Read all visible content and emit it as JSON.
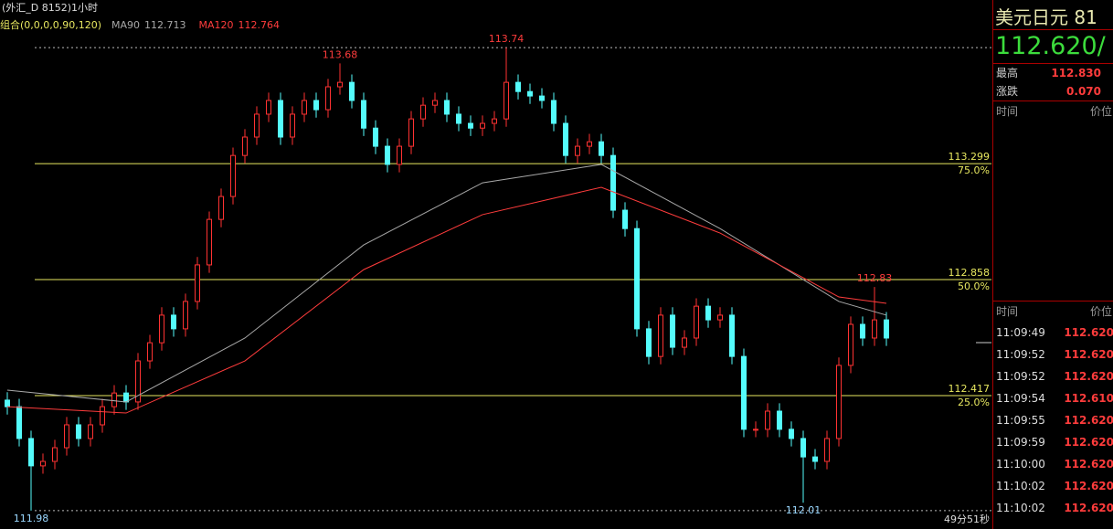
{
  "header": {
    "title": "(外汇_D 8152)1小时",
    "indicator": "组合(0,0,0,0,90,120)"
  },
  "chart_data": {
    "type": "candlestick",
    "open": [
      112.4,
      112.375,
      112.254,
      112.15,
      112.167,
      112.219,
      112.306,
      112.254,
      112.306,
      112.375,
      112.427,
      112.393,
      112.549,
      112.618,
      112.723,
      112.671,
      112.775,
      112.914,
      113.087,
      113.174,
      113.33,
      113.4,
      113.487,
      113.539,
      113.4,
      113.487,
      113.539,
      113.504,
      113.591,
      113.608,
      113.539,
      113.434,
      113.365,
      113.296,
      113.365,
      113.469,
      113.521,
      113.539,
      113.487,
      113.452,
      113.434,
      113.452,
      113.469,
      113.608,
      113.573,
      113.556,
      113.539,
      113.452,
      113.33,
      113.365,
      113.382,
      113.33,
      113.122,
      113.052,
      112.671,
      112.566,
      112.723,
      112.601,
      112.636,
      112.757,
      112.705,
      112.723,
      112.566,
      112.289,
      112.289,
      112.358,
      112.289,
      112.254,
      112.184,
      112.167,
      112.254,
      112.532,
      112.688,
      112.636,
      112.705
    ],
    "high": [
      112.43,
      112.405,
      112.284,
      112.197,
      112.249,
      112.336,
      112.336,
      112.336,
      112.405,
      112.457,
      112.457,
      112.579,
      112.648,
      112.753,
      112.753,
      112.805,
      112.944,
      113.117,
      113.204,
      113.36,
      113.43,
      113.517,
      113.569,
      113.569,
      113.517,
      113.569,
      113.569,
      113.621,
      113.68,
      113.638,
      113.569,
      113.464,
      113.395,
      113.395,
      113.499,
      113.551,
      113.569,
      113.569,
      113.517,
      113.482,
      113.482,
      113.499,
      113.74,
      113.638,
      113.603,
      113.586,
      113.569,
      113.482,
      113.395,
      113.412,
      113.412,
      113.36,
      113.152,
      113.082,
      112.701,
      112.753,
      112.753,
      112.666,
      112.787,
      112.787,
      112.753,
      112.753,
      112.596,
      112.319,
      112.388,
      112.388,
      112.319,
      112.284,
      112.214,
      112.284,
      112.562,
      112.718,
      112.718,
      112.83,
      112.735
    ],
    "low": [
      112.345,
      112.224,
      111.98,
      112.12,
      112.137,
      112.189,
      112.224,
      112.224,
      112.276,
      112.345,
      112.363,
      112.363,
      112.519,
      112.588,
      112.641,
      112.641,
      112.745,
      112.884,
      113.057,
      113.144,
      113.3,
      113.37,
      113.457,
      113.37,
      113.37,
      113.457,
      113.474,
      113.474,
      113.561,
      113.509,
      113.404,
      113.335,
      113.266,
      113.266,
      113.335,
      113.439,
      113.491,
      113.457,
      113.422,
      113.404,
      113.404,
      113.422,
      113.439,
      113.543,
      113.526,
      113.509,
      113.422,
      113.3,
      113.3,
      113.335,
      113.3,
      113.092,
      113.022,
      112.641,
      112.536,
      112.536,
      112.571,
      112.571,
      112.606,
      112.675,
      112.675,
      112.536,
      112.259,
      112.259,
      112.259,
      112.259,
      112.224,
      112.01,
      112.137,
      112.137,
      112.224,
      112.502,
      112.606,
      112.606,
      112.606
    ],
    "close": [
      112.375,
      112.254,
      112.15,
      112.167,
      112.219,
      112.306,
      112.254,
      112.306,
      112.375,
      112.427,
      112.393,
      112.549,
      112.618,
      112.723,
      112.671,
      112.775,
      112.914,
      113.087,
      113.174,
      113.33,
      113.4,
      113.487,
      113.539,
      113.4,
      113.487,
      113.539,
      113.504,
      113.591,
      113.608,
      113.539,
      113.434,
      113.365,
      113.296,
      113.365,
      113.469,
      113.521,
      113.539,
      113.487,
      113.452,
      113.434,
      113.452,
      113.469,
      113.608,
      113.573,
      113.556,
      113.539,
      113.452,
      113.33,
      113.365,
      113.382,
      113.33,
      113.122,
      113.052,
      112.671,
      112.566,
      112.723,
      112.601,
      112.636,
      112.757,
      112.705,
      112.723,
      112.566,
      112.289,
      112.289,
      112.358,
      112.289,
      112.254,
      112.184,
      112.167,
      112.254,
      112.532,
      112.688,
      112.636,
      112.705,
      112.636
    ],
    "up_color": "#ff3232",
    "down_color": "#54fcfc",
    "ylim": [
      111.91,
      113.921
    ],
    "series": [
      {
        "name": "MA90",
        "last": 112.713,
        "color": "#a8a8a8",
        "x": [
          0,
          10,
          20,
          30,
          40,
          50,
          60,
          70,
          74
        ],
        "values": [
          112.438,
          112.393,
          112.636,
          112.99,
          113.226,
          113.296,
          113.052,
          112.775,
          112.723
        ]
      },
      {
        "name": "MA120",
        "last": 112.764,
        "color": "#ff3c3c",
        "x": [
          0,
          10,
          20,
          30,
          40,
          50,
          60,
          70,
          74
        ],
        "values": [
          112.375,
          112.351,
          112.549,
          112.896,
          113.105,
          113.209,
          113.035,
          112.792,
          112.768
        ]
      }
    ],
    "levels": [
      {
        "price": 113.299,
        "label": "75.0%"
      },
      {
        "price": 112.858,
        "label": "50.0%"
      },
      {
        "price": 112.417,
        "label": "25.0%"
      }
    ],
    "level_color": "#e8e860",
    "annotations": [
      {
        "value": 113.74,
        "at": "high"
      },
      {
        "value": 113.68,
        "at": "high"
      },
      {
        "value": 112.83,
        "at": "high"
      },
      {
        "value": 111.98,
        "at": "low"
      },
      {
        "value": 112.01,
        "at": "low"
      }
    ],
    "countdown": "49分51秒"
  },
  "panel": {
    "title": "美元日元  81",
    "price": "112.620/",
    "stats": [
      {
        "label": "最高",
        "value": "112.830"
      },
      {
        "label": "涨跌",
        "value": "0.070"
      }
    ],
    "headers": [
      "时间",
      "价位"
    ],
    "ticks": [
      {
        "time": "11:09:49",
        "price": "112.620"
      },
      {
        "time": "11:09:52",
        "price": "112.620"
      },
      {
        "time": "11:09:52",
        "price": "112.620"
      },
      {
        "time": "11:09:54",
        "price": "112.610"
      },
      {
        "time": "11:09:55",
        "price": "112.620"
      },
      {
        "time": "11:09:59",
        "price": "112.620"
      },
      {
        "time": "11:10:00",
        "price": "112.620"
      },
      {
        "time": "11:10:02",
        "price": "112.620"
      },
      {
        "time": "11:10:02",
        "price": "112.620"
      }
    ]
  }
}
